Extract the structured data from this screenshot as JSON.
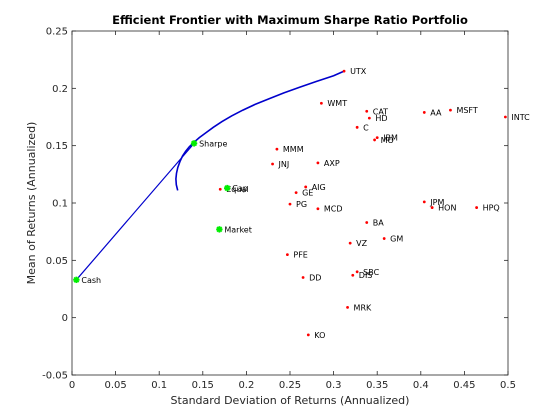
{
  "chart_data": {
    "type": "scatter",
    "title": "Efficient Frontier with Maximum Sharpe Ratio Portfolio",
    "xlabel": "Standard Deviation of Returns (Annualized)",
    "ylabel": "Mean of Returns (Annualized)",
    "xlim": [
      0,
      0.5
    ],
    "ylim": [
      -0.05,
      0.25
    ],
    "xticks": [
      "0",
      "0.05",
      "0.1",
      "0.15",
      "0.2",
      "0.25",
      "0.3",
      "0.35",
      "0.4",
      "0.45",
      "0.5"
    ],
    "yticks": [
      "-0.05",
      "0",
      "0.05",
      "0.1",
      "0.15",
      "0.2",
      "0.25"
    ],
    "grid": false,
    "colors": {
      "frontier": "#0000cc",
      "assets": "#ff0000",
      "portfolios": "#00ee00"
    },
    "assets": [
      {
        "label": "UTX",
        "x": 0.312,
        "y": 0.215
      },
      {
        "label": "WMT",
        "x": 0.286,
        "y": 0.187
      },
      {
        "label": "AA",
        "x": 0.404,
        "y": 0.179
      },
      {
        "label": "MSFT",
        "x": 0.434,
        "y": 0.181
      },
      {
        "label": "CAT",
        "x": 0.338,
        "y": 0.18
      },
      {
        "label": "HD",
        "x": 0.341,
        "y": 0.174
      },
      {
        "label": "INTC",
        "x": 0.497,
        "y": 0.175
      },
      {
        "label": "C",
        "x": 0.327,
        "y": 0.166
      },
      {
        "label": "IBM",
        "x": 0.35,
        "y": 0.157
      },
      {
        "label": "MO",
        "x": 0.347,
        "y": 0.155
      },
      {
        "label": "MMM",
        "x": 0.235,
        "y": 0.147
      },
      {
        "label": "JNJ",
        "x": 0.23,
        "y": 0.134
      },
      {
        "label": "AXP",
        "x": 0.282,
        "y": 0.135
      },
      {
        "label": "Equal",
        "x": 0.17,
        "y": 0.112
      },
      {
        "label": "AIG",
        "x": 0.268,
        "y": 0.114
      },
      {
        "label": "GE",
        "x": 0.257,
        "y": 0.109
      },
      {
        "label": "PG",
        "x": 0.25,
        "y": 0.099
      },
      {
        "label": "MCD",
        "x": 0.282,
        "y": 0.095
      },
      {
        "label": "JPM",
        "x": 0.404,
        "y": 0.101
      },
      {
        "label": "HON",
        "x": 0.413,
        "y": 0.096
      },
      {
        "label": "HPQ",
        "x": 0.464,
        "y": 0.096
      },
      {
        "label": "BA",
        "x": 0.338,
        "y": 0.083
      },
      {
        "label": "VZ",
        "x": 0.319,
        "y": 0.065
      },
      {
        "label": "GM",
        "x": 0.358,
        "y": 0.069
      },
      {
        "label": "PFE",
        "x": 0.247,
        "y": 0.055
      },
      {
        "label": "SBC",
        "x": 0.327,
        "y": 0.04
      },
      {
        "label": "DIS",
        "x": 0.322,
        "y": 0.037
      },
      {
        "label": "DD",
        "x": 0.265,
        "y": 0.035
      },
      {
        "label": "MRK",
        "x": 0.316,
        "y": 0.009
      },
      {
        "label": "KO",
        "x": 0.271,
        "y": -0.015
      }
    ],
    "portfolios": [
      {
        "label": "Sharpe",
        "x": 0.14,
        "y": 0.152
      },
      {
        "label": "Cap",
        "x": 0.178,
        "y": 0.113
      },
      {
        "label": "Market",
        "x": 0.169,
        "y": 0.077
      },
      {
        "label": "Cash",
        "x": 0.005,
        "y": 0.033
      }
    ],
    "frontier": {
      "x": [
        0.1212,
        0.1196,
        0.1192,
        0.1198,
        0.1213,
        0.1237,
        0.1267,
        0.1303,
        0.1345,
        0.14,
        0.146,
        0.153,
        0.162,
        0.172,
        0.183,
        0.196,
        0.21,
        0.226,
        0.243,
        0.261,
        0.28,
        0.3,
        0.312
      ],
      "y": [
        0.111,
        0.116,
        0.121,
        0.126,
        0.131,
        0.136,
        0.141,
        0.145,
        0.149,
        0.153,
        0.157,
        0.161,
        0.166,
        0.171,
        0.176,
        0.181,
        0.186,
        0.191,
        0.196,
        0.201,
        0.206,
        0.211,
        0.215
      ]
    },
    "capital_market_line": {
      "x": [
        0.005,
        0.14
      ],
      "y": [
        0.033,
        0.152
      ]
    }
  }
}
